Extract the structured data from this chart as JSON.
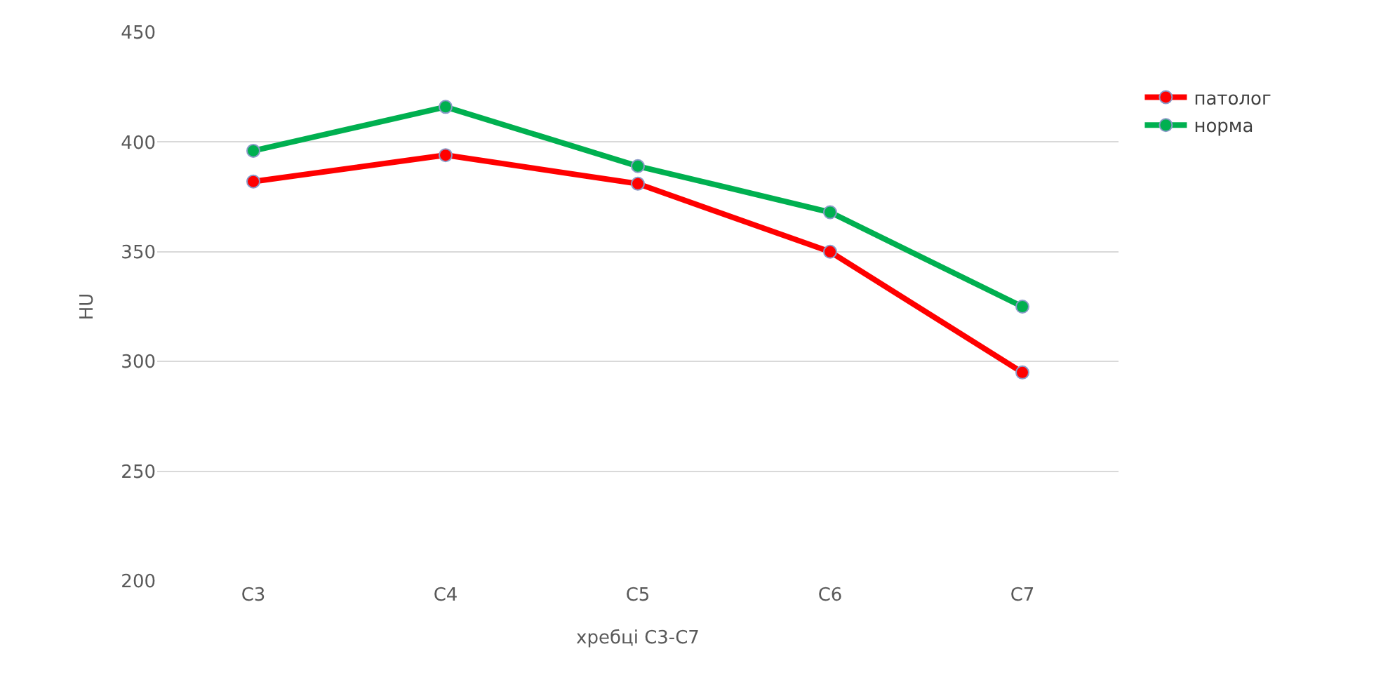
{
  "chart_data": {
    "type": "line",
    "xlabel": "хребці С3-С7",
    "ylabel": "HU",
    "categories": [
      "C3",
      "C4",
      "C5",
      "C6",
      "C7"
    ],
    "series": [
      {
        "name": "патолог",
        "color": "#ff0000",
        "values": [
          382,
          394,
          381,
          350,
          295
        ]
      },
      {
        "name": "норма",
        "color": "#00b050",
        "values": [
          396,
          416,
          389,
          368,
          325
        ]
      }
    ],
    "ylim": [
      200,
      450
    ],
    "yticks": [
      200,
      250,
      300,
      350,
      400,
      450
    ],
    "grid": "y",
    "legend": "top right",
    "marker": "circle",
    "line_style": "solid"
  }
}
